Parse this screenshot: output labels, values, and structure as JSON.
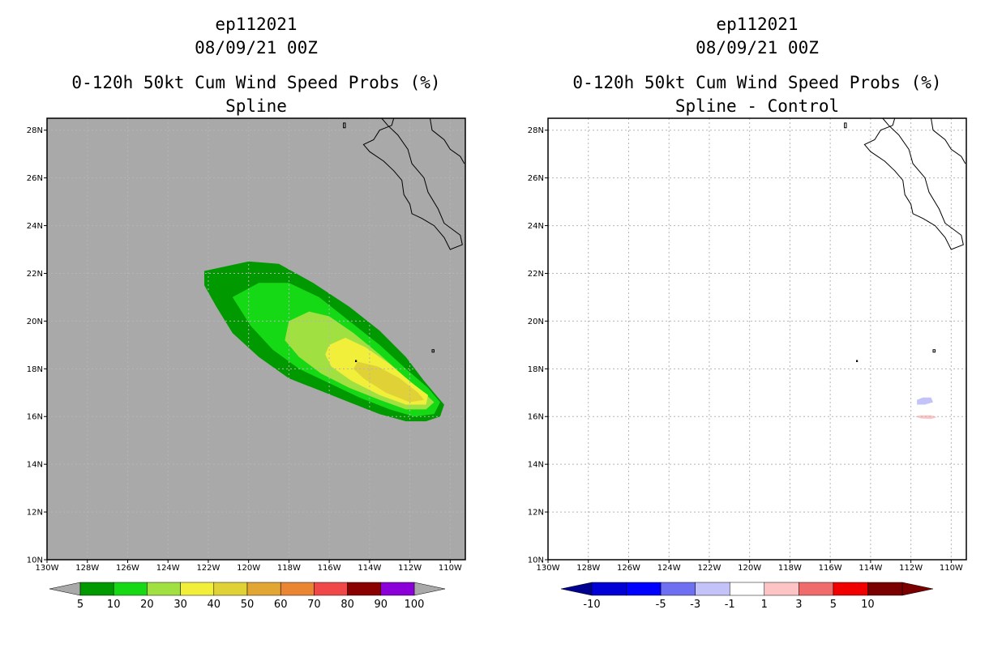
{
  "panels": [
    {
      "id": "spline",
      "title_lines": [
        "ep112021",
        "08/09/21 00Z",
        "0-120h 50kt Cum Wind Speed Probs (%)",
        "Spline"
      ],
      "background_color": "#a9a9a9",
      "colorbar": {
        "colors": [
          "#009900",
          "#16d916",
          "#a0e141",
          "#f2ef3a",
          "#e0d236",
          "#e2a634",
          "#ea8534",
          "#f04848",
          "#8b0000",
          "#8b00d8"
        ],
        "labels": [
          "5",
          "10",
          "20",
          "30",
          "40",
          "50",
          "60",
          "70",
          "80",
          "90",
          "100"
        ],
        "end_color": "#a9a9a9"
      }
    },
    {
      "id": "diff",
      "title_lines": [
        "ep112021",
        "08/09/21 00Z",
        "0-120h 50kt Cum Wind Speed Probs (%)",
        "Spline - Control"
      ],
      "background_color": "#ffffff",
      "colorbar": {
        "colors": [
          "#0000d6",
          "#0000ff",
          "#6f6ff2",
          "#c3c3fa",
          "#ffffff",
          "#fcc4c4",
          "#f06c6c",
          "#f00000",
          "#7a0000"
        ],
        "labels": [
          "-10",
          "-5",
          "-3",
          "-1",
          "1",
          "3",
          "5",
          "10"
        ],
        "end_colors": [
          "#000090",
          "#7a0000"
        ]
      }
    }
  ],
  "axes": {
    "lon_ticks": [
      "130W",
      "128W",
      "126W",
      "124W",
      "122W",
      "120W",
      "118W",
      "116W",
      "114W",
      "112W",
      "110W"
    ],
    "lat_ticks": [
      "10N",
      "12N",
      "14N",
      "16N",
      "18N",
      "20N",
      "22N",
      "24N",
      "26N",
      "28N"
    ],
    "lon_range": [
      -130,
      -109.25
    ],
    "lat_range": [
      10,
      28.5
    ]
  },
  "prob_field": {
    "levels": [
      {
        "min": 5,
        "color": "#009900",
        "points": [
          [
            -122.2,
            22.1
          ],
          [
            -120.0,
            22.5
          ],
          [
            -118.5,
            22.4
          ],
          [
            -116.8,
            21.6
          ],
          [
            -115.0,
            20.6
          ],
          [
            -113.5,
            19.6
          ],
          [
            -112.2,
            18.5
          ],
          [
            -111.3,
            17.5
          ],
          [
            -110.6,
            16.8
          ],
          [
            -110.3,
            16.5
          ],
          [
            -110.5,
            16.0
          ],
          [
            -111.2,
            15.8
          ],
          [
            -112.2,
            15.8
          ],
          [
            -113.5,
            16.1
          ],
          [
            -115.0,
            16.6
          ],
          [
            -116.5,
            17.1
          ],
          [
            -118.0,
            17.6
          ],
          [
            -119.5,
            18.5
          ],
          [
            -120.8,
            19.5
          ],
          [
            -121.6,
            20.6
          ],
          [
            -122.2,
            21.5
          ]
        ]
      },
      {
        "min": 10,
        "color": "#16d916",
        "points": [
          [
            -120.8,
            21.0
          ],
          [
            -119.5,
            21.6
          ],
          [
            -118.0,
            21.6
          ],
          [
            -116.5,
            21.0
          ],
          [
            -115.0,
            20.0
          ],
          [
            -113.5,
            19.0
          ],
          [
            -112.2,
            18.0
          ],
          [
            -111.1,
            17.2
          ],
          [
            -110.5,
            16.6
          ],
          [
            -110.8,
            16.1
          ],
          [
            -111.8,
            16.0
          ],
          [
            -113.0,
            16.3
          ],
          [
            -114.5,
            16.8
          ],
          [
            -116.0,
            17.4
          ],
          [
            -117.5,
            18.0
          ],
          [
            -118.8,
            18.8
          ],
          [
            -119.9,
            19.8
          ]
        ]
      },
      {
        "min": 20,
        "color": "#a0e141",
        "points": [
          [
            -118.0,
            20.0
          ],
          [
            -117.0,
            20.4
          ],
          [
            -116.0,
            20.2
          ],
          [
            -114.8,
            19.5
          ],
          [
            -113.5,
            18.6
          ],
          [
            -112.3,
            17.7
          ],
          [
            -111.3,
            17.0
          ],
          [
            -110.8,
            16.6
          ],
          [
            -111.2,
            16.3
          ],
          [
            -112.2,
            16.3
          ],
          [
            -113.5,
            16.7
          ],
          [
            -115.0,
            17.2
          ],
          [
            -116.4,
            17.8
          ],
          [
            -117.5,
            18.5
          ],
          [
            -118.2,
            19.2
          ]
        ]
      },
      {
        "min": 30,
        "color": "#f2ef3a",
        "points": [
          [
            -116.0,
            19.0
          ],
          [
            -115.2,
            19.3
          ],
          [
            -114.2,
            18.9
          ],
          [
            -113.0,
            18.2
          ],
          [
            -111.9,
            17.4
          ],
          [
            -111.1,
            16.9
          ],
          [
            -111.2,
            16.5
          ],
          [
            -112.2,
            16.5
          ],
          [
            -113.5,
            16.9
          ],
          [
            -114.9,
            17.5
          ],
          [
            -115.9,
            18.1
          ],
          [
            -116.2,
            18.6
          ]
        ]
      },
      {
        "min": 40,
        "color": "#e0d236",
        "points": [
          [
            -114.6,
            18.3
          ],
          [
            -113.6,
            18.1
          ],
          [
            -112.5,
            17.6
          ],
          [
            -111.6,
            17.0
          ],
          [
            -111.3,
            16.7
          ],
          [
            -112.0,
            16.6
          ],
          [
            -113.2,
            17.0
          ],
          [
            -114.3,
            17.6
          ],
          [
            -114.8,
            18.0
          ]
        ]
      }
    ]
  },
  "diff_field": {
    "patches": [
      {
        "color": "#c3c3fa",
        "points": [
          [
            -111.4,
            16.8
          ],
          [
            -111.0,
            16.8
          ],
          [
            -110.9,
            16.6
          ],
          [
            -111.3,
            16.5
          ],
          [
            -111.7,
            16.5
          ],
          [
            -111.7,
            16.7
          ]
        ]
      },
      {
        "color": "#fcc4c4",
        "points": [
          [
            -111.5,
            16.05
          ],
          [
            -111.0,
            16.05
          ],
          [
            -110.7,
            15.97
          ],
          [
            -111.0,
            15.9
          ],
          [
            -111.5,
            15.92
          ],
          [
            -111.8,
            16.0
          ]
        ]
      }
    ]
  },
  "coastline": {
    "peninsula": [
      [
        -112.8,
        28.5
      ],
      [
        -112.9,
        28.2
      ],
      [
        -113.5,
        28.0
      ],
      [
        -113.8,
        27.6
      ],
      [
        -114.3,
        27.4
      ],
      [
        -114.0,
        27.1
      ],
      [
        -113.3,
        26.7
      ],
      [
        -112.8,
        26.3
      ],
      [
        -112.4,
        25.9
      ],
      [
        -112.3,
        25.3
      ],
      [
        -112.0,
        24.9
      ],
      [
        -111.9,
        24.5
      ],
      [
        -111.4,
        24.3
      ],
      [
        -110.8,
        24.0
      ],
      [
        -110.3,
        23.5
      ],
      [
        -110.0,
        23.0
      ],
      [
        -109.4,
        23.2
      ],
      [
        -109.5,
        23.6
      ],
      [
        -110.3,
        24.1
      ],
      [
        -110.6,
        24.7
      ],
      [
        -111.1,
        25.4
      ],
      [
        -111.3,
        26.0
      ],
      [
        -111.9,
        26.6
      ],
      [
        -112.1,
        27.2
      ],
      [
        -112.6,
        27.8
      ],
      [
        -113.1,
        28.2
      ],
      [
        -113.4,
        28.5
      ]
    ],
    "mainland": [
      [
        -111.0,
        28.5
      ],
      [
        -110.9,
        28.0
      ],
      [
        -110.3,
        27.6
      ],
      [
        -110.0,
        27.2
      ],
      [
        -109.5,
        26.9
      ],
      [
        -109.3,
        26.6
      ]
    ],
    "islands": [
      [
        [
          -110.9,
          18.8
        ],
        [
          -110.8,
          18.8
        ],
        [
          -110.8,
          18.7
        ],
        [
          -110.9,
          18.7
        ]
      ],
      [
        [
          -114.7,
          18.35
        ],
        [
          -114.65,
          18.35
        ],
        [
          -114.65,
          18.3
        ],
        [
          -114.7,
          18.3
        ]
      ],
      [
        [
          -115.3,
          28.3
        ],
        [
          -115.2,
          28.3
        ],
        [
          -115.2,
          28.1
        ],
        [
          -115.3,
          28.1
        ]
      ]
    ]
  }
}
